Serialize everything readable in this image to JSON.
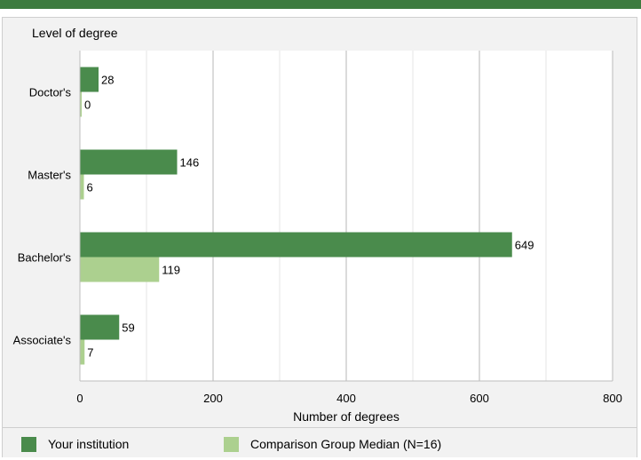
{
  "chart_data": {
    "type": "bar",
    "orientation": "horizontal",
    "ylabel": "Level of degree",
    "xlabel": "Number of degrees",
    "categories": [
      "Doctor's",
      "Master's",
      "Bachelor's",
      "Associate's"
    ],
    "series": [
      {
        "name": "Your institution",
        "values": [
          28,
          146,
          649,
          59
        ],
        "color": "#4a8b4c"
      },
      {
        "name": "Comparison Group Median (N=16)",
        "values": [
          0,
          6,
          119,
          7
        ],
        "color": "#acd08f"
      }
    ],
    "xlim": [
      0,
      800
    ],
    "xticks": [
      0,
      200,
      400,
      600,
      800
    ],
    "grid": true,
    "legend_position": "bottom"
  },
  "colors": {
    "header_bar": "#3d7b3f",
    "panel_background": "#f2f2f2",
    "plot_background": "#ffffff",
    "gridline": "#cfcfcf"
  }
}
